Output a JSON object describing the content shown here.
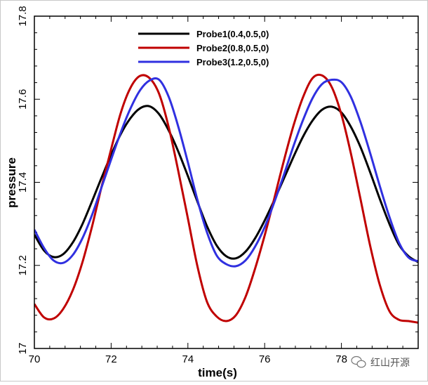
{
  "chart_data": {
    "type": "line",
    "title": "",
    "xlabel": "time(s)",
    "ylabel": "pressure",
    "xlim": [
      70,
      80
    ],
    "ylim": [
      17.0,
      17.8
    ],
    "xticks": [
      "70",
      "72",
      "74",
      "76",
      "78"
    ],
    "yticks": [
      "17",
      "17.2",
      "17.4",
      "17.6",
      "17.8"
    ],
    "grid": false,
    "legend_position": "top-center",
    "series": [
      {
        "name": "Probe1(0.4,0.5,0)",
        "color": "#000000",
        "x": [
          70.0,
          70.25,
          70.5,
          70.75,
          71.0,
          71.25,
          71.5,
          71.75,
          72.0,
          72.25,
          72.5,
          72.75,
          73.0,
          73.25,
          73.5,
          73.75,
          74.0,
          74.25,
          74.5,
          74.75,
          75.0,
          75.25,
          75.5,
          75.75,
          76.0,
          76.25,
          76.5,
          76.75,
          77.0,
          77.25,
          77.5,
          77.75,
          78.0,
          78.25,
          78.5,
          78.75,
          79.0,
          79.25,
          79.5,
          79.75,
          80.0
        ],
        "y": [
          17.274,
          17.236,
          17.22,
          17.227,
          17.255,
          17.299,
          17.354,
          17.411,
          17.466,
          17.516,
          17.554,
          17.578,
          17.583,
          17.564,
          17.525,
          17.474,
          17.415,
          17.353,
          17.294,
          17.248,
          17.222,
          17.217,
          17.233,
          17.265,
          17.308,
          17.357,
          17.409,
          17.461,
          17.51,
          17.549,
          17.575,
          17.582,
          17.568,
          17.533,
          17.484,
          17.424,
          17.36,
          17.3,
          17.25,
          17.222,
          17.208
        ]
      },
      {
        "name": "Probe2(0.8,0.5,0)",
        "color": "#c00000",
        "x": [
          70.0,
          70.25,
          70.5,
          70.75,
          71.0,
          71.25,
          71.5,
          71.75,
          72.0,
          72.25,
          72.5,
          72.75,
          73.0,
          73.25,
          73.5,
          73.75,
          74.0,
          74.25,
          74.5,
          74.75,
          75.0,
          75.25,
          75.5,
          75.75,
          76.0,
          76.25,
          76.5,
          76.75,
          77.0,
          77.25,
          77.5,
          77.75,
          78.0,
          78.25,
          78.5,
          78.75,
          79.0,
          79.25,
          79.5,
          79.75,
          80.0
        ],
        "y": [
          17.107,
          17.075,
          17.072,
          17.095,
          17.14,
          17.207,
          17.293,
          17.389,
          17.48,
          17.567,
          17.627,
          17.656,
          17.651,
          17.613,
          17.533,
          17.427,
          17.313,
          17.197,
          17.112,
          17.077,
          17.066,
          17.08,
          17.124,
          17.192,
          17.272,
          17.361,
          17.452,
          17.536,
          17.605,
          17.651,
          17.657,
          17.629,
          17.563,
          17.468,
          17.358,
          17.247,
          17.153,
          17.09,
          17.069,
          17.066,
          17.062
        ]
      },
      {
        "name": "Probe3(1.2,0.5,0)",
        "color": "#3030e0",
        "x": [
          70.0,
          70.25,
          70.5,
          70.75,
          71.0,
          71.25,
          71.5,
          71.75,
          72.0,
          72.25,
          72.5,
          72.75,
          73.0,
          73.25,
          73.5,
          73.75,
          74.0,
          74.25,
          74.5,
          74.75,
          75.0,
          75.25,
          75.5,
          75.75,
          76.0,
          76.25,
          76.5,
          76.75,
          77.0,
          77.25,
          77.5,
          77.75,
          78.0,
          78.25,
          78.5,
          78.75,
          79.0,
          79.25,
          79.5,
          79.75,
          80.0
        ],
        "y": [
          17.286,
          17.242,
          17.212,
          17.206,
          17.225,
          17.265,
          17.321,
          17.388,
          17.455,
          17.52,
          17.577,
          17.621,
          17.645,
          17.647,
          17.606,
          17.534,
          17.448,
          17.357,
          17.279,
          17.224,
          17.203,
          17.198,
          17.212,
          17.245,
          17.292,
          17.352,
          17.418,
          17.487,
          17.55,
          17.603,
          17.637,
          17.647,
          17.641,
          17.605,
          17.544,
          17.47,
          17.391,
          17.317,
          17.255,
          17.219,
          17.21
        ]
      }
    ]
  },
  "watermark": {
    "text": "红山开源"
  }
}
